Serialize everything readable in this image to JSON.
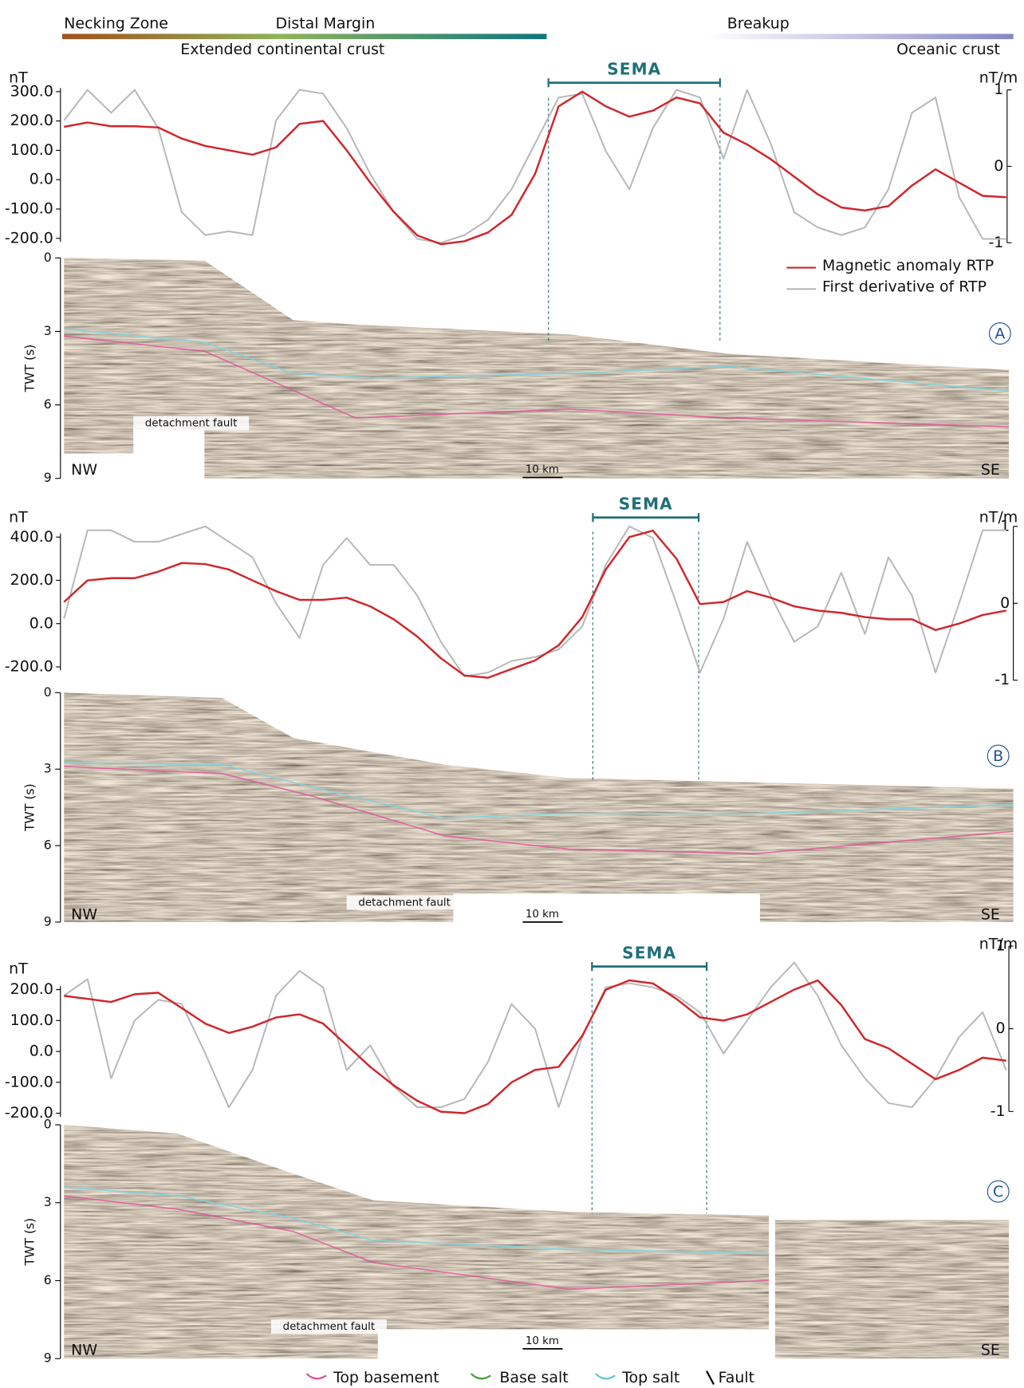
{
  "header": {
    "zones": [
      "Necking Zone",
      "Distal Margin",
      "Breakup"
    ],
    "crust": [
      "Extended continental crust",
      "Oceanic crust"
    ]
  },
  "legend": [
    "Top basement",
    "Base salt",
    "Top salt",
    "Fault"
  ],
  "chart_data": [
    {
      "type": "line",
      "panel_label": "A",
      "ylabel": "nT",
      "y2label": "nT/m",
      "ylim": [
        -200,
        300
      ],
      "yticks": [
        {
          "value": 300,
          "label": "300.0"
        },
        {
          "value": 200,
          "label": "200.0"
        },
        {
          "value": 100,
          "label": "100.0"
        },
        {
          "value": 0,
          "label": "0.0"
        },
        {
          "value": -100,
          "label": "-100.0"
        },
        {
          "value": -200,
          "label": "-200.0"
        }
      ],
      "y2lim": [
        -1,
        1
      ],
      "y2ticks": [
        1,
        0,
        -1
      ],
      "annotation": "SEMA",
      "series": [
        {
          "name": "Magnetic anomaly RTP",
          "color": "#d0262b",
          "axis": "y",
          "values": [
            180,
            195,
            182,
            182,
            178,
            140,
            115,
            100,
            85,
            110,
            190,
            200,
            100,
            -10,
            -110,
            -190,
            -220,
            -210,
            -180,
            -120,
            20,
            250,
            300,
            250,
            215,
            235,
            280,
            260,
            160,
            120,
            70,
            10,
            -50,
            -95,
            -105,
            -90,
            -20,
            35,
            -10,
            -55,
            -60
          ]
        },
        {
          "name": "First derivative of RTP",
          "color": "#b8b8b8",
          "axis": "y2",
          "values": [
            0.6,
            1.0,
            0.7,
            1.0,
            0.5,
            -0.6,
            -0.9,
            -0.85,
            -0.9,
            0.6,
            1.0,
            0.95,
            0.5,
            -0.1,
            -0.6,
            -0.95,
            -1.0,
            -0.9,
            -0.7,
            -0.3,
            0.3,
            0.9,
            0.95,
            0.2,
            -0.3,
            0.5,
            1.0,
            0.9,
            0.1,
            1.0,
            0.3,
            -0.6,
            -0.8,
            -0.9,
            -0.8,
            -0.3,
            0.7,
            0.9,
            -0.4,
            -0.95,
            -0.95
          ]
        }
      ],
      "seismic": {
        "ylabel": "TWT (s)",
        "ylim": [
          0,
          9
        ],
        "yticks": [
          0,
          3,
          6,
          9
        ],
        "left": "NW",
        "right": "SE",
        "scale_bar": "10 km",
        "annotation": "detachment fault"
      }
    },
    {
      "type": "line",
      "panel_label": "B",
      "ylabel": "nT",
      "y2label": "nT/m",
      "ylim": [
        -200,
        400
      ],
      "yticks": [
        {
          "value": 400,
          "label": "400.0"
        },
        {
          "value": 200,
          "label": "200.0"
        },
        {
          "value": 0,
          "label": "0.0"
        },
        {
          "value": -200,
          "label": "-200.0"
        }
      ],
      "y2lim": [
        -1,
        1
      ],
      "y2ticks": [
        1,
        0,
        -1
      ],
      "annotation": "SEMA",
      "series": [
        {
          "color": "#d0262b",
          "axis": "y",
          "values": [
            100,
            200,
            210,
            210,
            240,
            280,
            275,
            250,
            200,
            150,
            110,
            110,
            120,
            80,
            20,
            -60,
            -160,
            -240,
            -250,
            -210,
            -170,
            -100,
            30,
            250,
            400,
            430,
            300,
            90,
            100,
            150,
            120,
            80,
            60,
            50,
            30,
            20,
            20,
            -30,
            0,
            40,
            60
          ]
        },
        {
          "color": "#b8b8b8",
          "axis": "y2",
          "values": [
            -0.2,
            0.95,
            0.95,
            0.8,
            0.8,
            0.9,
            1.0,
            0.8,
            0.6,
            0.0,
            -0.45,
            0.5,
            0.85,
            0.5,
            0.5,
            0.1,
            -0.5,
            -0.95,
            -0.9,
            -0.75,
            -0.7,
            -0.6,
            -0.3,
            0.5,
            1.0,
            0.85,
            0.0,
            -0.9,
            -0.2,
            0.8,
            0.1,
            -0.5,
            -0.3,
            0.4,
            -0.4,
            0.6,
            0.1,
            -0.9,
            0.0,
            0.95,
            0.95
          ]
        }
      ],
      "seismic": {
        "ylabel": "TWT (s)",
        "ylim": [
          0,
          9
        ],
        "yticks": [
          0,
          3,
          6,
          9
        ],
        "left": "NW",
        "right": "SE",
        "scale_bar": "10 km",
        "annotation": "detachment fault"
      }
    },
    {
      "type": "line",
      "panel_label": "C",
      "ylabel": "nT",
      "y2label": "nT/m",
      "ylim": [
        -200,
        200
      ],
      "yticks": [
        {
          "value": 200,
          "label": "200.0"
        },
        {
          "value": 100,
          "label": "100.0"
        },
        {
          "value": 0,
          "label": "0.0"
        },
        {
          "value": -100,
          "label": "-100.0"
        },
        {
          "value": -200,
          "label": "-200.0"
        }
      ],
      "y2lim": [
        -1,
        1
      ],
      "y2ticks": [
        1,
        0,
        -1
      ],
      "annotation": "SEMA",
      "series": [
        {
          "color": "#d0262b",
          "axis": "y",
          "values": [
            180,
            170,
            160,
            185,
            190,
            140,
            90,
            60,
            80,
            110,
            120,
            90,
            20,
            -50,
            -110,
            -160,
            -195,
            -200,
            -170,
            -100,
            -60,
            -50,
            50,
            200,
            230,
            220,
            170,
            110,
            100,
            120,
            160,
            200,
            230,
            150,
            40,
            10,
            -40,
            -90,
            -60,
            -20,
            -30
          ]
        },
        {
          "color": "#b8b8b8",
          "axis": "y2",
          "values": [
            0.4,
            0.6,
            -0.6,
            0.1,
            0.35,
            0.3,
            -0.3,
            -0.95,
            -0.5,
            0.4,
            0.7,
            0.5,
            -0.5,
            -0.2,
            -0.7,
            -0.95,
            -0.95,
            -0.85,
            -0.4,
            0.3,
            0.0,
            -0.95,
            -0.1,
            0.5,
            0.55,
            0.5,
            0.4,
            0.2,
            -0.3,
            0.1,
            0.5,
            0.8,
            0.4,
            -0.2,
            -0.6,
            -0.9,
            -0.95,
            -0.6,
            -0.1,
            0.2,
            -0.5
          ]
        }
      ],
      "seismic": {
        "ylabel": "TWT (s)",
        "ylim": [
          0,
          9
        ],
        "yticks": [
          0,
          3,
          6,
          9
        ],
        "left": "NW",
        "right": "SE",
        "scale_bar": "10 km",
        "annotation": "detachment fault"
      }
    }
  ]
}
